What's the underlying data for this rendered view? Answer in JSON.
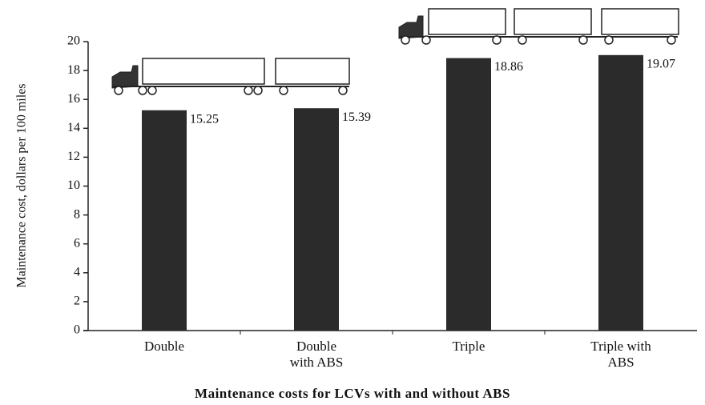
{
  "chart_data": {
    "type": "bar",
    "title": "Maintenance costs for LCVs with and without ABS",
    "y_label": "Maintenance cost, dollars per 100 miles",
    "categories": [
      "Double",
      "Double with ABS",
      "Triple",
      "Triple with ABS"
    ],
    "values": [
      15.25,
      15.39,
      18.86,
      19.07
    ],
    "color": "#2b2b2b",
    "ylim": [
      0,
      20
    ],
    "yticks": [
      0,
      2,
      4,
      6,
      8,
      10,
      12,
      14,
      16,
      18,
      20
    ]
  }
}
